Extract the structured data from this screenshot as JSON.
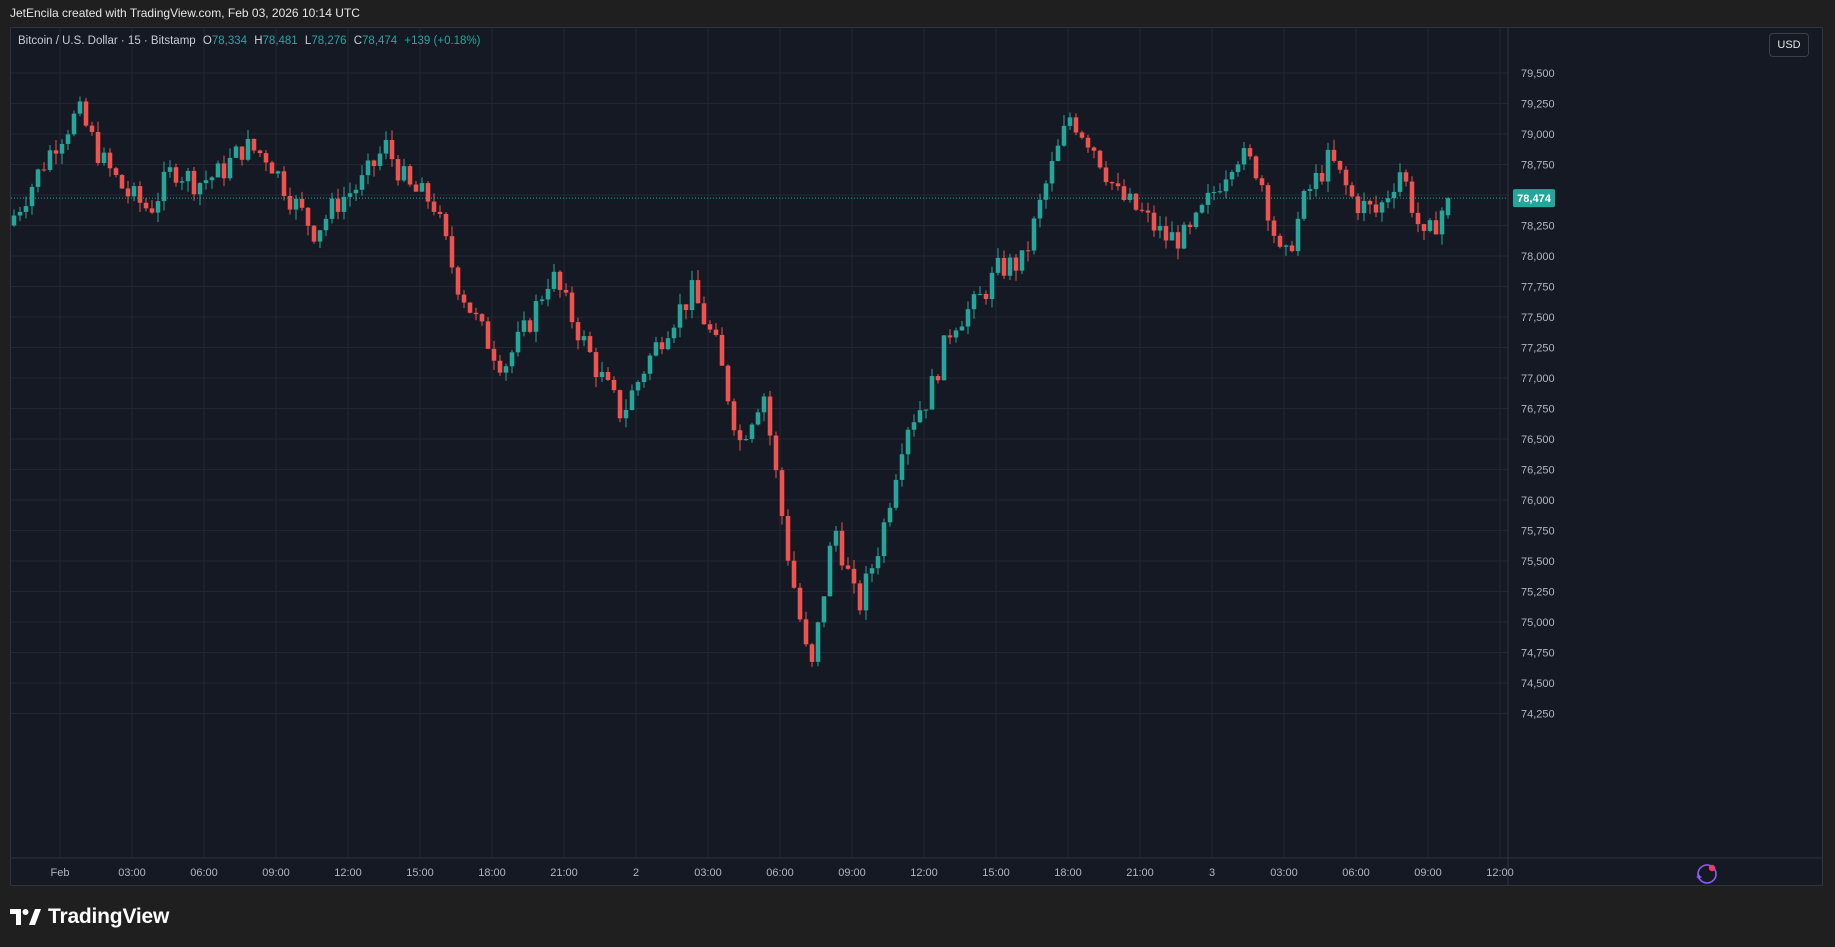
{
  "credit": "JetEncila created with TradingView.com, Feb 03, 2026 10:14 UTC",
  "legend": {
    "symbol": "Bitcoin / U.S. Dollar · 15 · Bitstamp",
    "open_label": "O",
    "open": "78,334",
    "high_label": "H",
    "high": "78,481",
    "low_label": "L",
    "low": "78,276",
    "close_label": "C",
    "close": "78,474",
    "change": "+139 (+0.18%)"
  },
  "currency_button": "USD",
  "brand": "TradingView",
  "icons": {
    "logo": "tradingview-logo-icon",
    "assistant": "spark-assistant-icon"
  },
  "colors": {
    "background": "#151924",
    "up": "#26a69a",
    "down": "#ef5350",
    "grid": "#232734",
    "text": "#b2b5be"
  },
  "chart_data": {
    "type": "candlestick",
    "interval": "15",
    "y_ticks": [
      "79,500",
      "79,250",
      "79,000",
      "78,750",
      "78,500",
      "78,250",
      "78,000",
      "77,750",
      "77,500",
      "77,250",
      "77,000",
      "76,750",
      "76,500",
      "76,250",
      "76,000",
      "75,750",
      "75,500",
      "75,250",
      "75,000",
      "74,750",
      "74,500",
      "74,250"
    ],
    "x_ticks": [
      "Feb",
      "03:00",
      "06:00",
      "09:00",
      "12:00",
      "15:00",
      "18:00",
      "21:00",
      "2",
      "03:00",
      "06:00",
      "09:00",
      "12:00",
      "15:00",
      "18:00",
      "21:00",
      "3",
      "03:00",
      "06:00",
      "09:00",
      "12:00"
    ],
    "last_price": "78,474",
    "ylim": [
      74100,
      79800
    ],
    "price_path": [
      [
        0,
        78250
      ],
      [
        1,
        78580
      ],
      [
        2,
        78930
      ],
      [
        3,
        79180
      ],
      [
        4,
        78780
      ],
      [
        5,
        78520
      ],
      [
        6,
        78380
      ],
      [
        7,
        78720
      ],
      [
        8,
        78600
      ],
      [
        9,
        78680
      ],
      [
        10,
        78900
      ],
      [
        11,
        78820
      ],
      [
        12,
        78470
      ],
      [
        13,
        78200
      ],
      [
        14,
        78450
      ],
      [
        15,
        78600
      ],
      [
        16,
        78900
      ],
      [
        17,
        78550
      ],
      [
        18,
        78450
      ],
      [
        19,
        77800
      ],
      [
        20,
        77400
      ],
      [
        21,
        77100
      ],
      [
        22,
        77420
      ],
      [
        23,
        77860
      ],
      [
        24,
        77450
      ],
      [
        25,
        77050
      ],
      [
        26,
        76700
      ],
      [
        27,
        77100
      ],
      [
        28,
        77450
      ],
      [
        29,
        77700
      ],
      [
        30,
        77250
      ],
      [
        31,
        76480
      ],
      [
        32,
        76900
      ],
      [
        33,
        75600
      ],
      [
        34,
        74550
      ],
      [
        35,
        75800
      ],
      [
        36,
        75100
      ],
      [
        37,
        75700
      ],
      [
        38,
        76600
      ],
      [
        39,
        76850
      ],
      [
        40,
        77450
      ],
      [
        41,
        77600
      ],
      [
        42,
        77900
      ],
      [
        43,
        77950
      ],
      [
        44,
        78600
      ],
      [
        45,
        79150
      ],
      [
        46,
        78900
      ],
      [
        47,
        78500
      ],
      [
        48,
        78350
      ],
      [
        49,
        78150
      ],
      [
        50,
        78150
      ],
      [
        51,
        78500
      ],
      [
        52,
        78850
      ],
      [
        53,
        78700
      ],
      [
        54,
        77900
      ],
      [
        55,
        78500
      ],
      [
        56,
        78800
      ],
      [
        57,
        78450
      ],
      [
        58,
        78350
      ],
      [
        59,
        78720
      ],
      [
        60,
        78100
      ],
      [
        61,
        78474
      ]
    ]
  }
}
